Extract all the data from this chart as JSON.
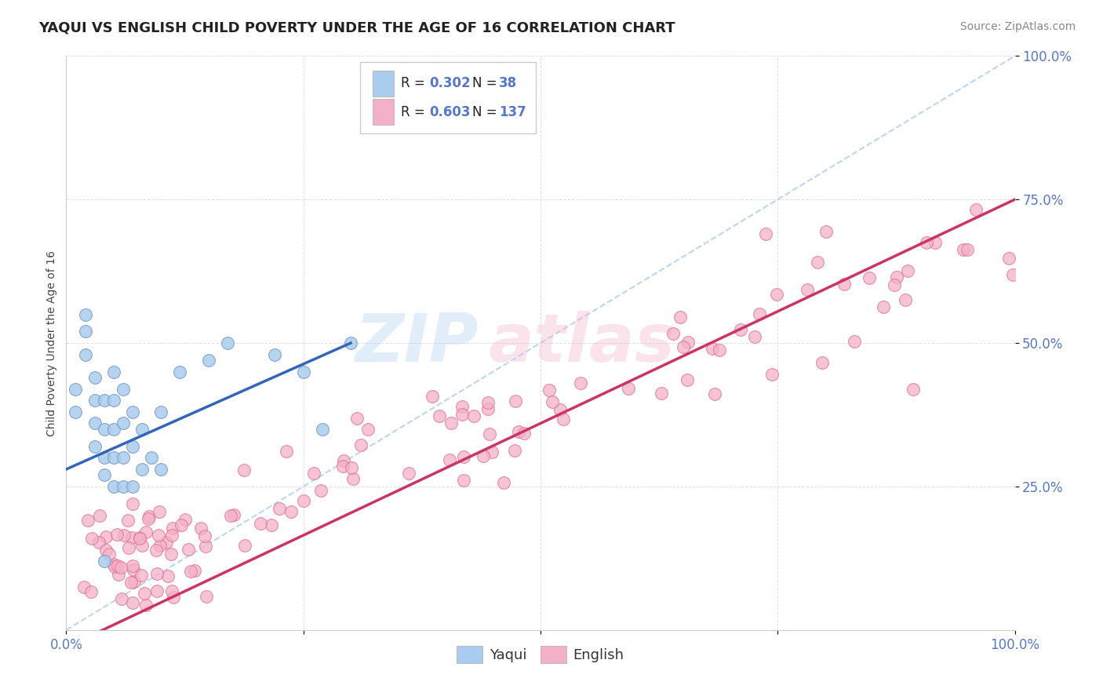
{
  "title": "YAQUI VS ENGLISH CHILD POVERTY UNDER THE AGE OF 16 CORRELATION CHART",
  "source": "Source: ZipAtlas.com",
  "ylabel": "Child Poverty Under the Age of 16",
  "xlim": [
    0,
    1
  ],
  "ylim": [
    0,
    1
  ],
  "xticks": [
    0,
    0.25,
    0.5,
    0.75,
    1.0
  ],
  "xtick_labels": [
    "0.0%",
    "",
    "",
    "",
    "100.0%"
  ],
  "yticks": [
    0.25,
    0.5,
    0.75,
    1.0
  ],
  "ytick_labels": [
    "25.0%",
    "50.0%",
    "75.0%",
    "100.0%"
  ],
  "title_color": "#222222",
  "title_fontsize": 13,
  "source_color": "#888888",
  "source_fontsize": 10,
  "axis_tick_color": "#5577cc",
  "watermark_zip_color": "#aaccee",
  "watermark_atlas_color": "#f4b0c8",
  "yaqui_color": "#aaccee",
  "yaqui_edge": "#7799cc",
  "english_color": "#f4b0c8",
  "english_edge": "#e07090",
  "trend_yaqui_color": "#3366bb",
  "trend_english_color": "#cc3366",
  "ref_line_color": "#aaccee",
  "background_color": "#ffffff",
  "plot_bg_color": "#ffffff",
  "grid_color": "#cccccc",
  "legend_box_color": "#dddddd",
  "legend_r_color": "#5577cc",
  "legend_n_color": "#222222"
}
